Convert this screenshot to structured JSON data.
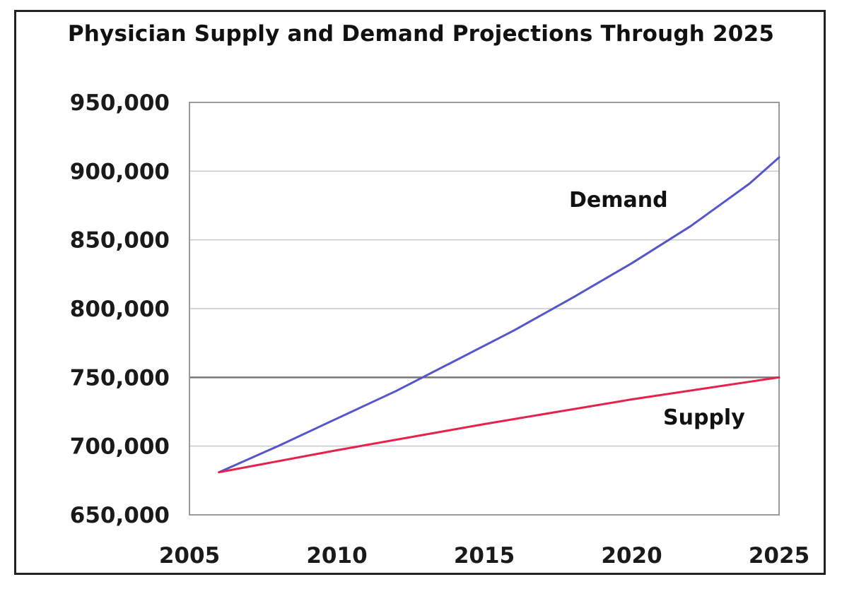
{
  "chart_data": {
    "type": "line",
    "title": "Physician Supply and Demand Projections Through 2025",
    "xlabel": "",
    "ylabel": "",
    "xlim": [
      2005,
      2025
    ],
    "ylim": [
      650000,
      950000
    ],
    "x_ticks": [
      2005,
      2010,
      2015,
      2020,
      2025
    ],
    "x_tick_labels": [
      "2005",
      "2010",
      "2015",
      "2020",
      "2025"
    ],
    "y_ticks": [
      650000,
      700000,
      750000,
      800000,
      850000,
      900000,
      950000
    ],
    "y_tick_labels": [
      "650,000",
      "700,000",
      "750,000",
      "800,000",
      "850,000",
      "900,000",
      "950,000"
    ],
    "grid": true,
    "legend": "none",
    "series": [
      {
        "name": "Demand",
        "color": "#5555cc",
        "x": [
          2006,
          2008,
          2010,
          2012,
          2014,
          2016,
          2018,
          2020,
          2022,
          2024,
          2025
        ],
        "values": [
          681000,
          700000,
          720000,
          740000,
          762000,
          784000,
          808000,
          833000,
          860000,
          891000,
          910000
        ]
      },
      {
        "name": "Supply",
        "color": "#e8204a",
        "x": [
          2006,
          2010,
          2015,
          2020,
          2025
        ],
        "values": [
          681000,
          697000,
          716000,
          734000,
          750000
        ]
      }
    ]
  }
}
